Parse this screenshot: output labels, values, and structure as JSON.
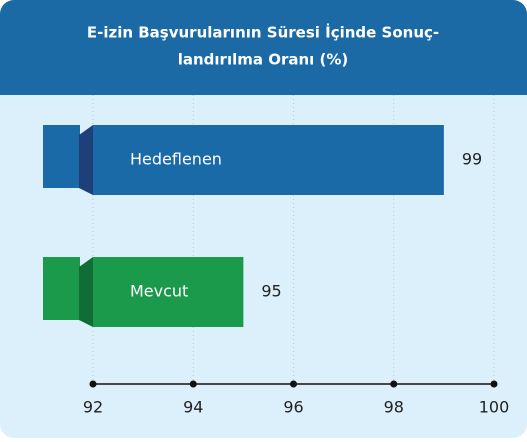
{
  "chart_data": {
    "type": "bar",
    "orientation": "horizontal",
    "title": [
      "E-izin Başvurularının Süresi İçinde Sonuç-",
      "landırılma Oranı (%)"
    ],
    "categories": [
      "Hedeflenen",
      "Mevcut"
    ],
    "values": [
      99,
      95
    ],
    "colors": [
      "#1b6aa8",
      "#1a9a4a"
    ],
    "xlim": [
      92,
      100
    ],
    "xticks": [
      92,
      94,
      96,
      98,
      100
    ],
    "grid": true
  }
}
